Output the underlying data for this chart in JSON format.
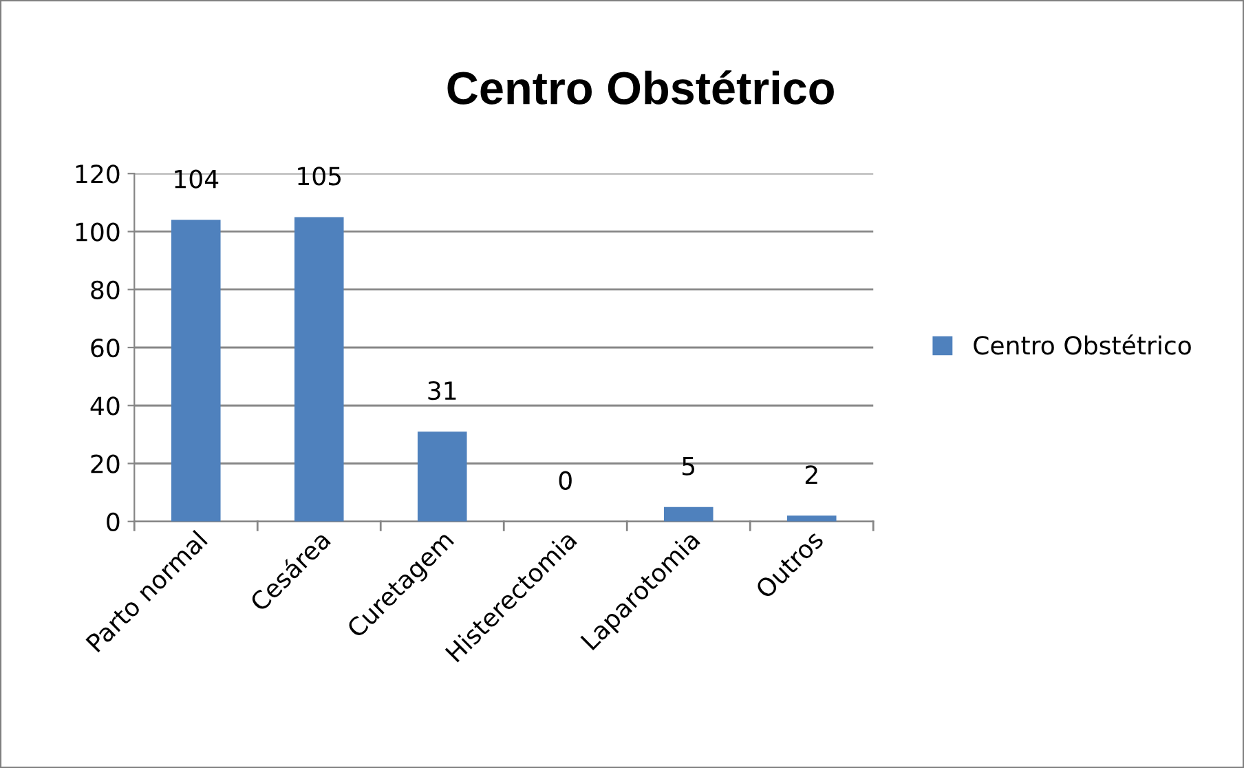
{
  "chart_data": {
    "type": "bar",
    "title": "Centro Obstétrico",
    "categories": [
      "Parto normal",
      "Cesárea",
      "Curetagem",
      "Histerectomia",
      "Laparotomia",
      "Outros"
    ],
    "series": [
      {
        "name": "Centro Obstétrico",
        "color": "#4f81bd",
        "values": [
          104,
          105,
          31,
          0,
          5,
          2
        ]
      }
    ],
    "ylim": [
      0,
      120
    ],
    "yticks": [
      0,
      20,
      40,
      60,
      80,
      100,
      120
    ],
    "grid": "y",
    "legend": "right",
    "data_labels": true
  }
}
